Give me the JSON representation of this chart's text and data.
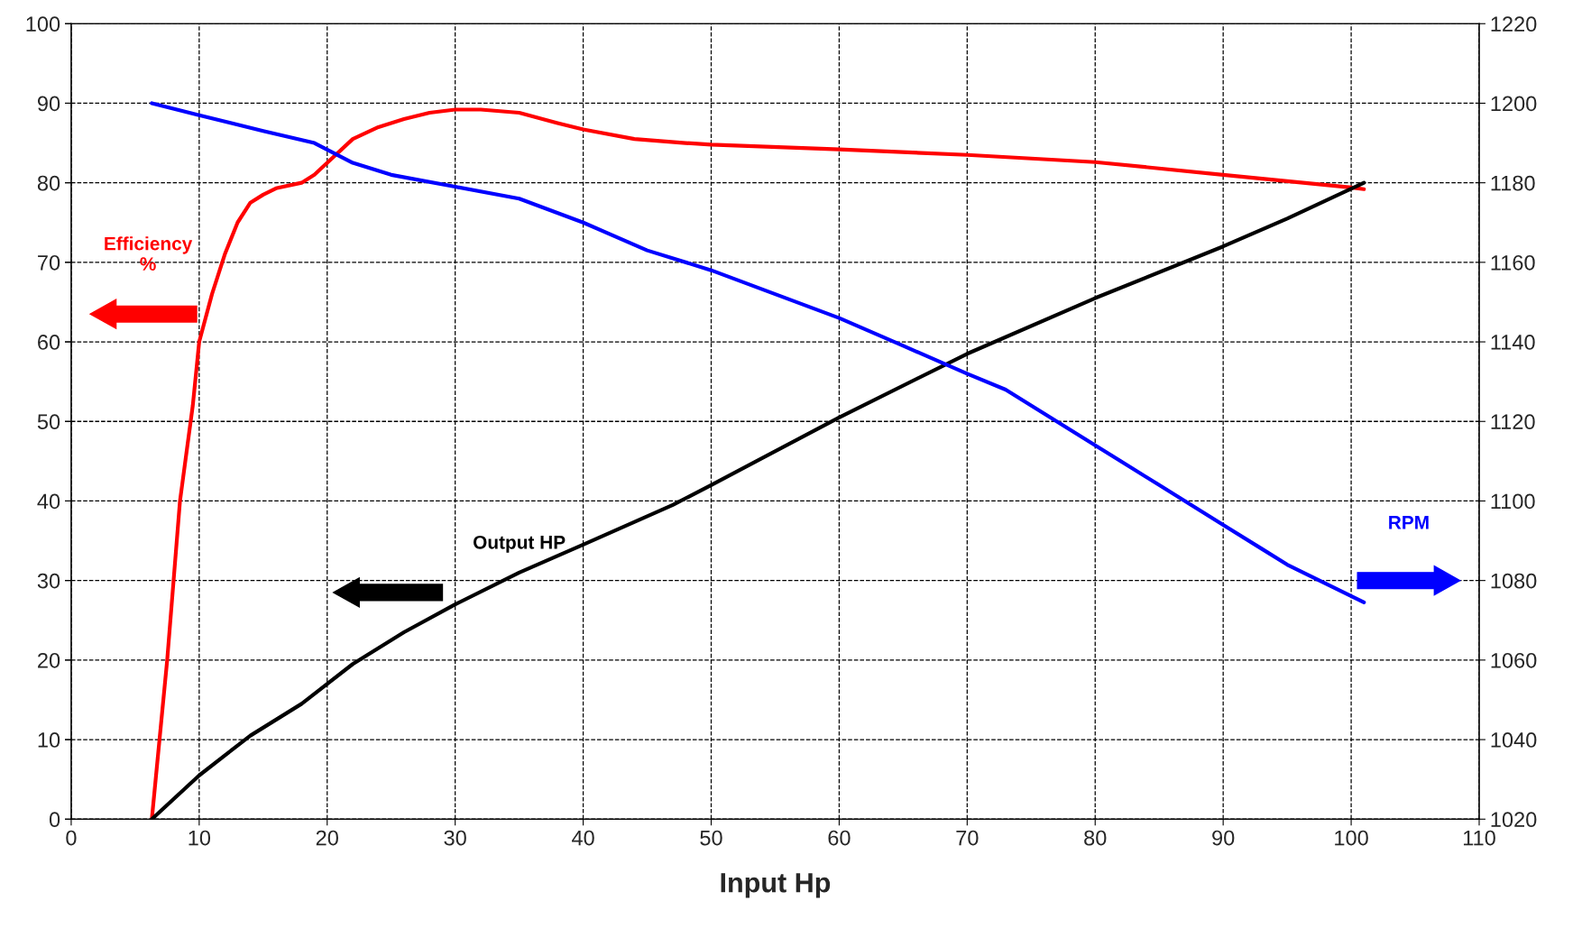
{
  "chart_data": {
    "type": "line",
    "xlabel": "Input Hp",
    "xlim": [
      0,
      110
    ],
    "xticks": [
      0,
      10,
      20,
      30,
      40,
      50,
      60,
      70,
      80,
      90,
      100,
      110
    ],
    "ylim": [
      0,
      100
    ],
    "yticks": [
      0,
      10,
      20,
      30,
      40,
      50,
      60,
      70,
      80,
      90,
      100
    ],
    "y2lim": [
      1020,
      1220
    ],
    "y2ticks": [
      1020,
      1040,
      1060,
      1080,
      1100,
      1120,
      1140,
      1160,
      1180,
      1200,
      1220
    ],
    "grid": true,
    "legend": false,
    "marker": "none",
    "line_style": "solid",
    "series": [
      {
        "name": "Efficiency %",
        "color": "#ff0000",
        "x": [
          6.3,
          7.5,
          8.5,
          9.5,
          10,
          11,
          12,
          13,
          14,
          15,
          16,
          18,
          19,
          20,
          22,
          24,
          26,
          28,
          30,
          32,
          35,
          38,
          40,
          44,
          48,
          50,
          60,
          70,
          80,
          90,
          100,
          101
        ],
        "values": [
          0,
          20,
          40,
          52,
          60,
          66,
          71,
          75,
          77.5,
          78.5,
          79.3,
          80,
          81,
          82.5,
          85.5,
          87,
          88,
          88.8,
          89.2,
          89.2,
          88.8,
          87.5,
          86.7,
          85.5,
          85,
          84.8,
          84.2,
          83.5,
          82.6,
          81,
          79.4,
          79.2
        ]
      },
      {
        "name": "Output HP",
        "color": "#000000",
        "x": [
          6.3,
          10,
          14,
          18,
          22,
          26,
          30,
          35,
          40,
          47,
          50,
          60,
          70,
          80,
          90,
          95,
          101
        ],
        "values": [
          0,
          5.5,
          10.5,
          14.5,
          19.5,
          23.5,
          27,
          31,
          34.5,
          39.5,
          42,
          50.5,
          58.5,
          65.5,
          72,
          75.5,
          80
        ]
      },
      {
        "name": "RPM",
        "color": "#0000ff",
        "axis": "y2",
        "x": [
          6.3,
          10,
          15,
          19,
          22,
          25,
          30,
          35,
          40,
          45,
          50,
          55,
          60,
          65,
          70,
          73,
          80,
          85,
          90,
          93,
          95,
          101
        ],
        "values": [
          1200,
          1197,
          1193,
          1190,
          1185,
          1182,
          1179,
          1176,
          1170,
          1163,
          1158,
          1152,
          1146,
          1139,
          1132,
          1128,
          1114,
          1104,
          1094,
          1088,
          1084,
          1074.5
        ]
      }
    ]
  }
}
